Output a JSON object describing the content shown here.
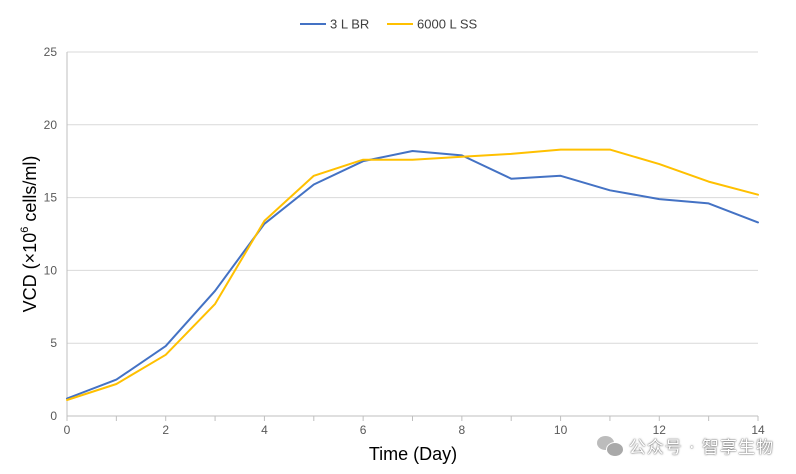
{
  "chart_data": {
    "type": "line",
    "title": "",
    "xlabel": "Time (Day)",
    "ylabel_prefix": "VCD (×10",
    "ylabel_exp": "6",
    "ylabel_suffix": " cells/ml)",
    "xlim": [
      0,
      14
    ],
    "ylim": [
      0,
      25
    ],
    "x_ticks": [
      0,
      2,
      4,
      6,
      8,
      10,
      12,
      14
    ],
    "y_ticks": [
      0,
      5,
      10,
      15,
      20,
      25
    ],
    "grid": "horizontal",
    "legend_position": "top-center",
    "x": [
      0,
      1,
      2,
      3,
      4,
      5,
      6,
      7,
      8,
      9,
      10,
      11,
      12,
      13,
      14
    ],
    "series": [
      {
        "name": "3 L BR",
        "color": "#4472C4",
        "values": [
          1.2,
          2.5,
          4.8,
          8.6,
          13.2,
          15.9,
          17.5,
          18.2,
          17.9,
          16.3,
          16.5,
          15.5,
          14.9,
          14.6,
          13.3
        ]
      },
      {
        "name": "6000 L SS",
        "color": "#FFC000",
        "values": [
          1.1,
          2.2,
          4.2,
          7.7,
          13.4,
          16.5,
          17.6,
          17.6,
          17.8,
          18.0,
          18.3,
          18.3,
          17.3,
          16.1,
          15.2
        ]
      }
    ]
  },
  "watermark": {
    "text": "公众号 · 智享生物",
    "icon": "wechat-icon"
  }
}
